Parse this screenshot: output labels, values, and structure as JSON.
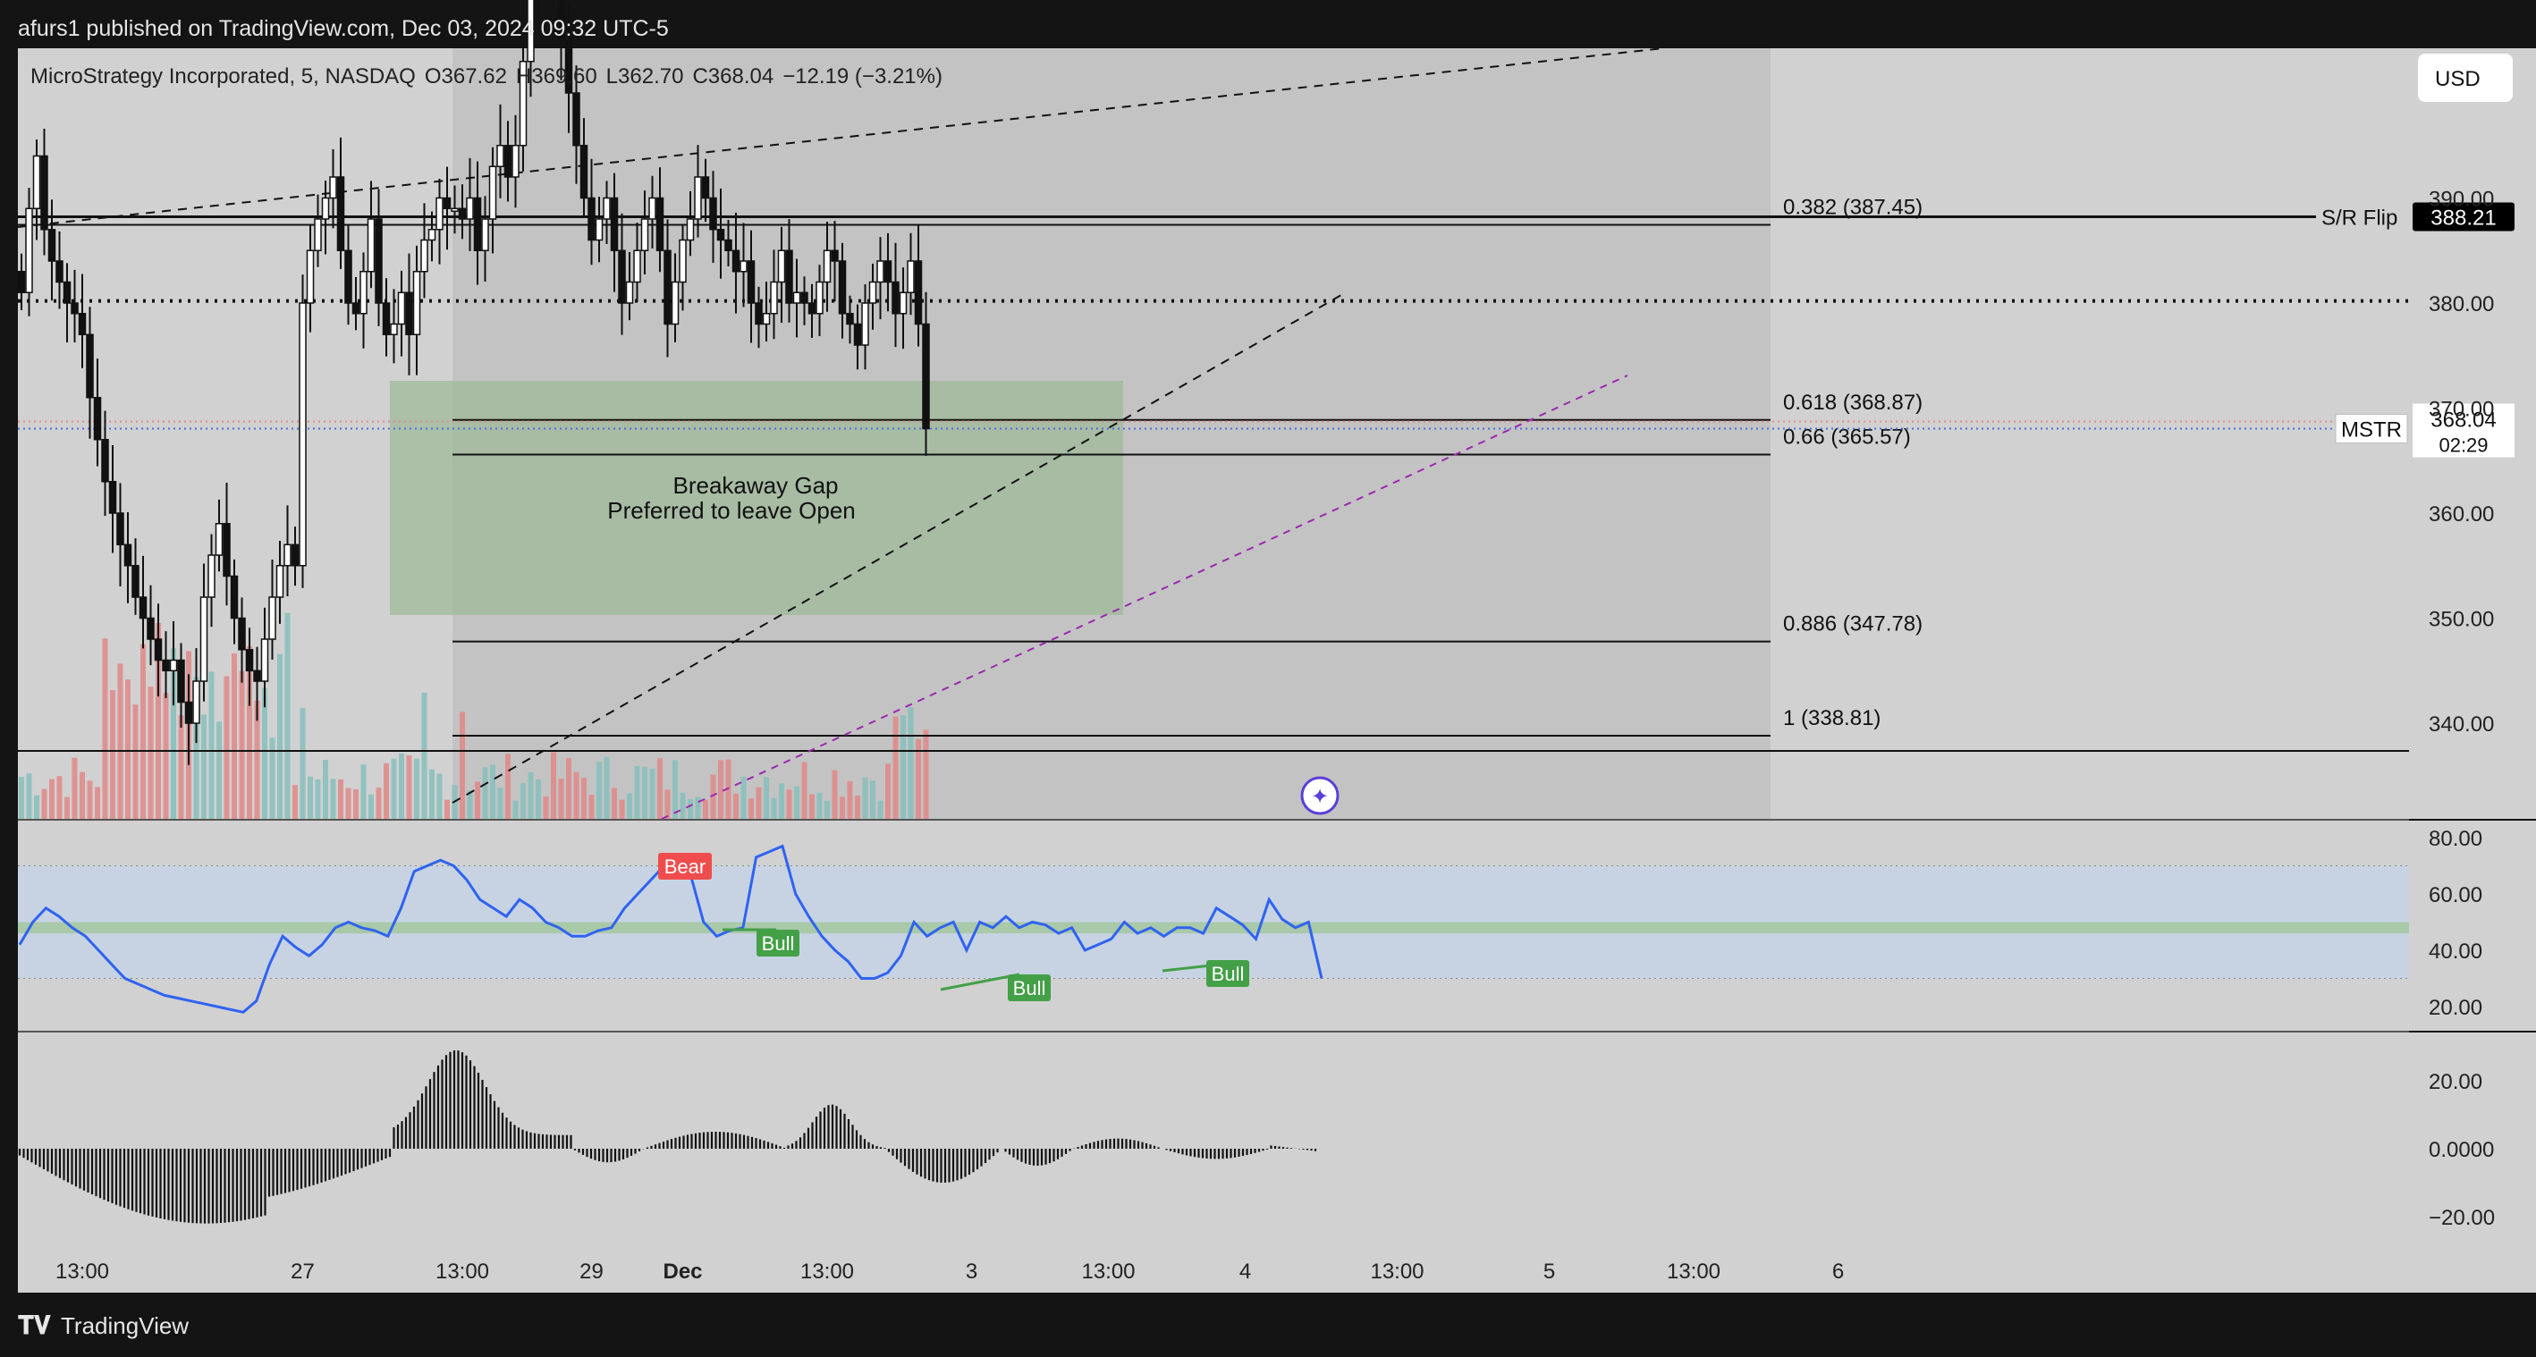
{
  "header": {
    "publisher": "afurs1 published on TradingView.com, Dec 03, 2024 09:32 UTC-5"
  },
  "legend": {
    "symbol": "MicroStrategy Incorporated, 5, NASDAQ",
    "o_label": "O",
    "o_value": "367.62",
    "h_label": "H",
    "h_value": "369.60",
    "l_label": "L",
    "l_value": "362.70",
    "c_label": "C",
    "c_value": "368.04",
    "change": "−12.19 (−3.21%)"
  },
  "currency_button": "USD",
  "footer": {
    "brand": "TradingView"
  },
  "colors": {
    "bg": "#141414",
    "pane": "#d1d1d1",
    "zone": "#c3c3c3",
    "gap": "#9dba98",
    "up": "#89c0bd",
    "down": "#df8c8c",
    "rsi": "#2f63f0",
    "bull": "#43a047",
    "bear": "#ef4d4d",
    "purple": "#9c27b0"
  },
  "chart_data": [
    {
      "type": "line",
      "title": "MicroStrategy Incorporated, 5, NASDAQ",
      "x_ticks": [
        "13:00",
        "27",
        "13:00",
        "29",
        "Dec",
        "13:00",
        "3",
        "13:00",
        "4",
        "13:00",
        "5",
        "13:00",
        "6"
      ],
      "x_tick_bar_index": [
        8,
        37,
        58,
        75,
        87,
        106,
        125,
        143,
        161,
        181,
        201,
        220,
        239
      ],
      "y_ticks": [
        "400.00",
        "390.00",
        "380.00",
        "370.00",
        "360.00",
        "350.00",
        "340.00"
      ],
      "y_tick_values": [
        400,
        390,
        380,
        370,
        360,
        350,
        340
      ],
      "ylim": [
        338.5,
        412.5
      ],
      "total_bars": 245,
      "close_series": [
        381,
        389,
        394,
        387,
        384,
        382,
        380,
        379,
        377,
        371,
        367,
        363,
        360,
        357,
        355,
        352,
        350,
        348,
        346,
        345,
        346,
        342,
        340,
        344,
        352,
        356,
        359,
        354,
        350,
        347,
        345,
        344,
        348,
        352,
        355,
        357,
        355,
        380,
        385,
        388,
        390,
        392,
        385,
        380,
        379,
        383,
        388,
        380,
        377,
        378,
        381,
        377,
        383,
        386,
        387,
        390,
        389,
        389,
        388,
        390,
        385,
        388,
        393,
        395,
        392,
        395,
        403,
        410,
        415,
        414,
        410,
        405,
        400,
        395,
        390,
        386,
        388,
        390,
        385,
        380,
        382,
        385,
        388,
        390,
        385,
        378,
        382,
        386,
        388,
        392,
        390,
        387,
        386,
        385,
        383,
        384,
        380,
        378,
        379,
        382,
        385,
        380,
        381,
        380,
        379,
        382,
        385,
        384,
        379,
        378,
        376,
        380,
        382,
        384,
        382,
        379,
        381,
        384,
        378,
        368.04
      ],
      "levels": [
        {
          "label": "0.382 (387.45)",
          "value": 387.45
        },
        {
          "label": "0.618 (368.87)",
          "value": 368.87
        },
        {
          "label": "0.66 (365.57)",
          "value": 365.57
        },
        {
          "label": "0.886 (347.78)",
          "value": 347.78
        },
        {
          "label": "1 (338.81)",
          "value": 338.81
        }
      ],
      "sr_flip": {
        "label": "S/R Flip",
        "value": 388.21,
        "badge": "388.21"
      },
      "dotted_level": 380.2,
      "price_line": {
        "symbol": "MSTR",
        "value": 368.04,
        "badge": "368.04",
        "countdown": "02:29"
      },
      "gap_zone": {
        "top": 379.2,
        "bottom": 357.0,
        "line1": "Breakaway Gap",
        "line2": "Preferred to leave Open"
      }
    },
    {
      "type": "line",
      "title": "RSI",
      "y_ticks": [
        "80.00",
        "60.00",
        "40.00",
        "20.00"
      ],
      "y_tick_values": [
        80,
        60,
        40,
        20
      ],
      "ylim": [
        15,
        85
      ],
      "band": [
        30,
        70
      ],
      "ma_band": [
        46,
        50
      ],
      "values": [
        42,
        50,
        55,
        52,
        48,
        45,
        40,
        35,
        30,
        28,
        26,
        24,
        23,
        22,
        21,
        20,
        19,
        18,
        22,
        35,
        45,
        41,
        38,
        42,
        48,
        50,
        48,
        47,
        45,
        55,
        68,
        70,
        72,
        70,
        65,
        58,
        55,
        52,
        58,
        55,
        50,
        48,
        45,
        45,
        47,
        48,
        55,
        60,
        65,
        70,
        68,
        67,
        50,
        45,
        47,
        48,
        73,
        75,
        77,
        60,
        52,
        45,
        40,
        36,
        30,
        30,
        32,
        38,
        50,
        45,
        48,
        50,
        40,
        50,
        48,
        52,
        48,
        50,
        49,
        46,
        48,
        40,
        42,
        44,
        50,
        46,
        48,
        45,
        48,
        48,
        46,
        55,
        52,
        49,
        44,
        58,
        51,
        48,
        50,
        30
      ],
      "divergences": [
        {
          "label": "Bull"
        },
        {
          "label": "Bull"
        },
        {
          "label": "Bull"
        }
      ],
      "bear_label": "Bear"
    },
    {
      "type": "bar",
      "title": "Histogram",
      "y_ticks": [
        "20.00",
        "0.0000",
        "−20.00"
      ],
      "y_tick_values": [
        20,
        0,
        -20
      ],
      "ylim": [
        -26,
        35
      ],
      "histogram_shape": "negative trough, strong positive spike near 27th session, oscillating small bars thereafter"
    }
  ]
}
